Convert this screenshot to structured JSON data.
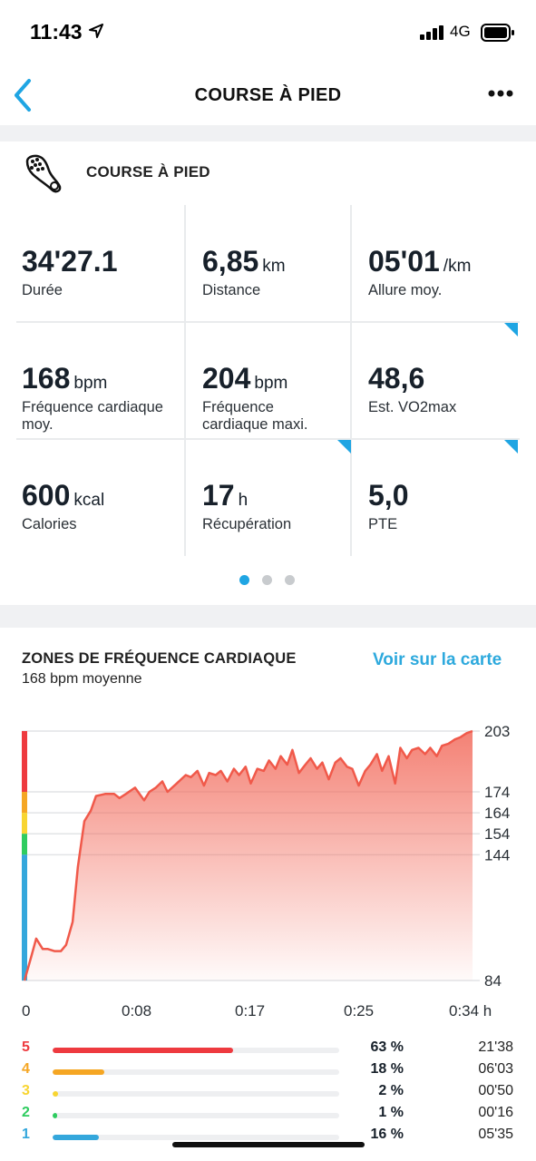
{
  "status": {
    "time": "11:43",
    "network": "4G"
  },
  "nav": {
    "title": "COURSE À PIED"
  },
  "activity": {
    "title": "COURSE À PIED"
  },
  "stats": [
    {
      "value": "34'27.1",
      "unit": "",
      "label": "Durée",
      "corner": false
    },
    {
      "value": "6,85",
      "unit": "km",
      "label": "Distance",
      "corner": false
    },
    {
      "value": "05'01",
      "unit": "/km",
      "label": "Allure moy.",
      "corner": true
    },
    {
      "value": "168",
      "unit": "bpm",
      "label": "Fréquence cardiaque moy.",
      "corner": false
    },
    {
      "value": "204",
      "unit": "bpm",
      "label": "Fréquence cardiaque maxi.",
      "corner": true
    },
    {
      "value": "48,6",
      "unit": "",
      "label": "Est. VO2max",
      "corner": true
    },
    {
      "value": "600",
      "unit": "kcal",
      "label": "Calories",
      "corner": false
    },
    {
      "value": "17",
      "unit": "h",
      "label": "Récupération",
      "corner": false
    },
    {
      "value": "5,0",
      "unit": "",
      "label": "PTE",
      "corner": false
    }
  ],
  "pager": {
    "pages": 3,
    "active": 0
  },
  "hr_section": {
    "title": "ZONES DE FRÉQUENCE CARDIAQUE",
    "subtitle": "168 bpm moyenne",
    "map_link": "Voir sur la carte"
  },
  "colors": {
    "accent": "#1fa5e3",
    "line": "#f0594a",
    "zone5": "#ee3a3f",
    "zone4": "#f5a623",
    "zone3": "#f8d531",
    "zone2": "#2ecc5f",
    "zone1": "#34a7dc"
  },
  "chart_data": {
    "type": "area",
    "ylim": [
      84,
      203
    ],
    "y_ticks": [
      203,
      174,
      164,
      154,
      144,
      84
    ],
    "x_tick_labels": [
      "0",
      "0:08",
      "0:17",
      "0:25",
      "0:34 h"
    ],
    "xlim_min": [
      0,
      34.45
    ],
    "series": [
      {
        "x_min": [
          0,
          0.5,
          0.9,
          1.4,
          1.8,
          2.3,
          2.8,
          3.2,
          3.7,
          4.1,
          4.6,
          5.1,
          5.5,
          6.2,
          6.9,
          7.3,
          7.8,
          8.5,
          9.2,
          9.6,
          10.1,
          10.6,
          11.0,
          11.7,
          12.4,
          12.8,
          13.3,
          13.8,
          14.2,
          14.7,
          15.1,
          15.6,
          16.1,
          16.5,
          17.0,
          17.4,
          17.9,
          18.4,
          18.8,
          19.3,
          19.7,
          20.2,
          20.6,
          21.1,
          21.6,
          22.0,
          22.5,
          22.9,
          23.4,
          23.9,
          24.3,
          24.8,
          25.2,
          25.7,
          26.2,
          26.6,
          27.1,
          27.5,
          28.0,
          28.5,
          28.9,
          29.4,
          29.8,
          30.3,
          30.8,
          31.2,
          31.7,
          32.1,
          32.6,
          33.1,
          33.5,
          34.0,
          34.45
        ],
        "y_bpm": [
          84,
          95,
          104,
          99,
          99,
          98,
          98,
          101,
          112,
          138,
          160,
          165,
          172,
          173,
          173,
          171,
          173,
          176,
          170,
          174,
          176,
          179,
          174,
          178,
          182,
          181,
          184,
          177,
          183,
          182,
          184,
          179,
          185,
          182,
          186,
          178,
          185,
          184,
          189,
          185,
          191,
          187,
          194,
          183,
          187,
          190,
          185,
          188,
          180,
          188,
          190,
          186,
          185,
          177,
          184,
          187,
          192,
          184,
          191,
          178,
          195,
          190,
          194,
          195,
          192,
          195,
          191,
          196,
          197,
          199,
          200,
          202,
          203
        ]
      }
    ],
    "zones": [
      {
        "zone": "5",
        "percent": "63 %",
        "time": "21'38",
        "fraction": 0.63
      },
      {
        "zone": "4",
        "percent": "18 %",
        "time": "06'03",
        "fraction": 0.18
      },
      {
        "zone": "3",
        "percent": "2 %",
        "time": "00'50",
        "fraction": 0.02
      },
      {
        "zone": "2",
        "percent": "1 %",
        "time": "00'16",
        "fraction": 0.01
      },
      {
        "zone": "1",
        "percent": "16 %",
        "time": "05'35",
        "fraction": 0.16
      }
    ]
  }
}
